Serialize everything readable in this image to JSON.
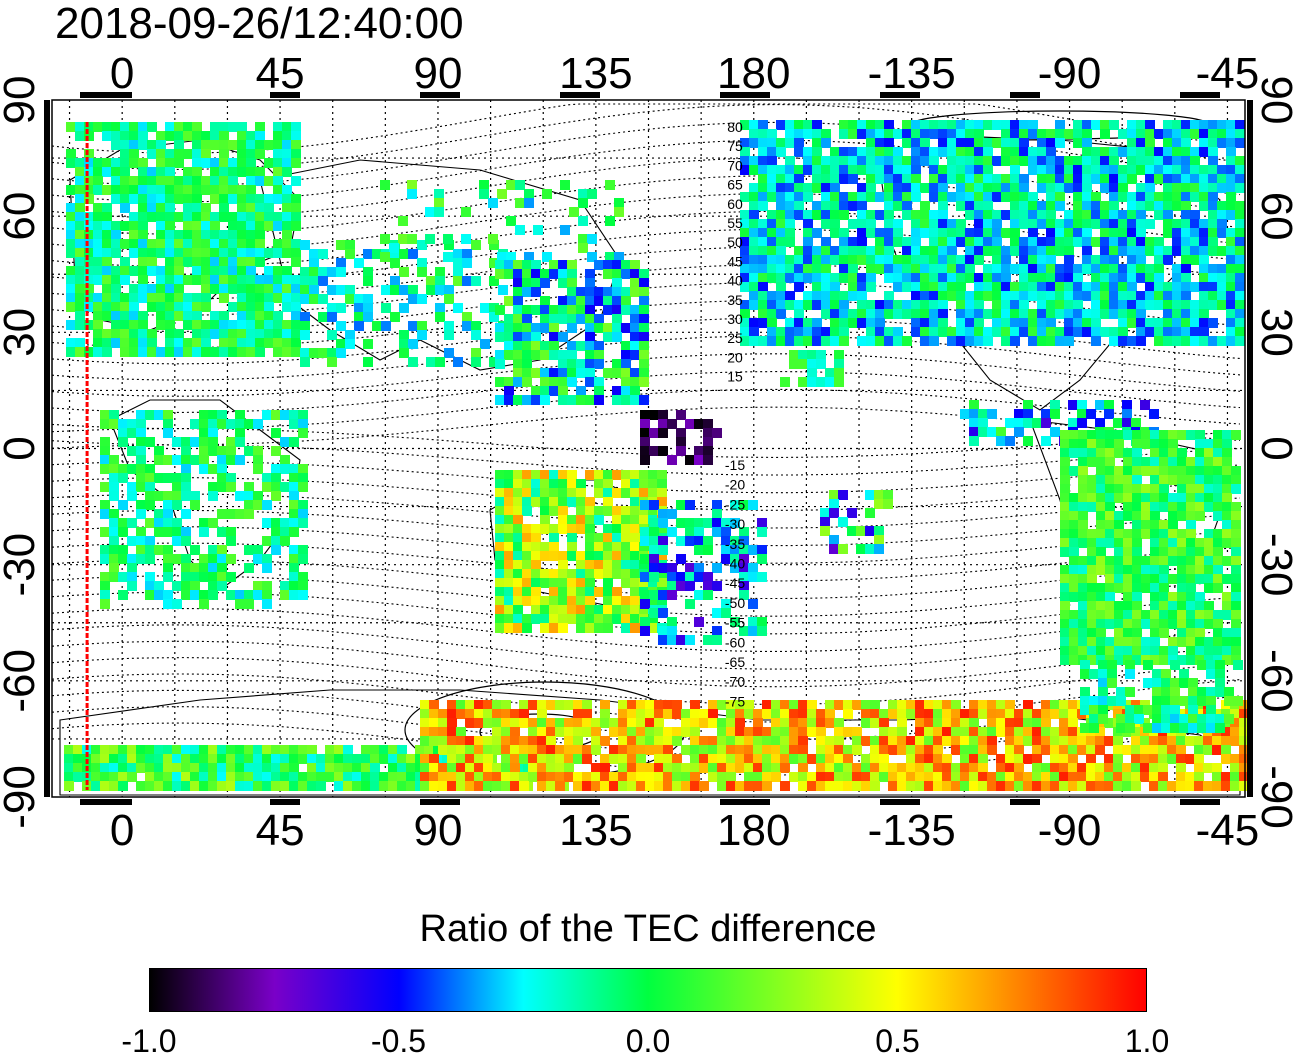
{
  "title": "2018-09-26/12:40:00",
  "map": {
    "top_lon_labels": [
      "0",
      "45",
      "90",
      "135",
      "180",
      "-135",
      "-90",
      "-45"
    ],
    "bottom_lon_labels": [
      "0",
      "45",
      "90",
      "135",
      "180",
      "-135",
      "-90",
      "-45"
    ],
    "left_lat_labels": [
      "90",
      "60",
      "30",
      "0",
      "-30",
      "-60",
      "-90"
    ],
    "right_lat_labels": [
      "90",
      "60",
      "30",
      "0",
      "-30",
      "-60",
      "-90"
    ],
    "contour_labels_north": [
      "80",
      "75",
      "70",
      "65",
      "60",
      "55",
      "50",
      "45",
      "40",
      "35",
      "30",
      "25",
      "20",
      "15"
    ],
    "contour_labels_south": [
      "-15",
      "-20",
      "-25",
      "-30",
      "-35",
      "-40",
      "-45",
      "-50",
      "-55",
      "-60",
      "-65",
      "-70",
      "-75"
    ],
    "grid_step_degrees": 15,
    "lon_range_left_to_right": [
      -20,
      320
    ],
    "lat_range": [
      -90,
      90
    ]
  },
  "colorbar": {
    "title": "Ratio of the TEC difference",
    "ticks": [
      "-1.0",
      "-0.5",
      "0.0",
      "0.5",
      "1.0"
    ],
    "range": [
      -1.0,
      1.0
    ],
    "stops": [
      {
        "value": -1.0,
        "color": "#000000"
      },
      {
        "value": -0.75,
        "color": "#7a00c8"
      },
      {
        "value": -0.5,
        "color": "#0000ff"
      },
      {
        "value": -0.25,
        "color": "#00ffff"
      },
      {
        "value": 0.0,
        "color": "#00ff40"
      },
      {
        "value": 0.5,
        "color": "#ffff00"
      },
      {
        "value": 0.75,
        "color": "#ff8000"
      },
      {
        "value": 1.0,
        "color": "#ff0000"
      }
    ]
  },
  "marker_line": {
    "color": "#ff0000",
    "lon": -10
  }
}
